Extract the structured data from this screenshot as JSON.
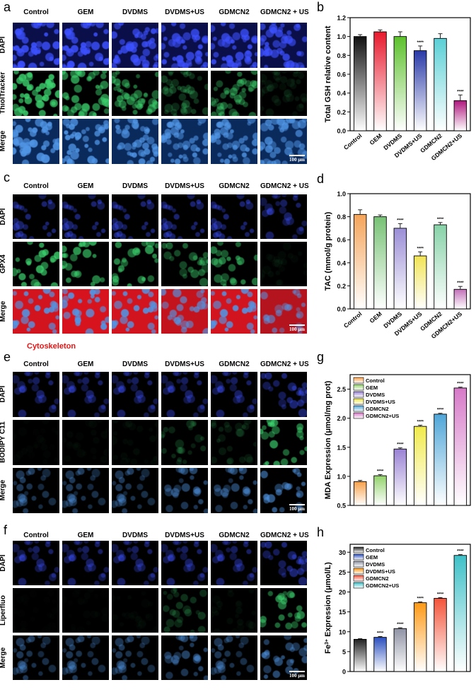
{
  "colors": {
    "dapi": "#2233d8",
    "green": "#33c060",
    "red": "#d62828",
    "error": "#222222"
  },
  "micrographs": [
    {
      "id": "a",
      "columns": [
        "Control",
        "GEM",
        "DVDMS",
        "DVDMS+US",
        "GDMCN2",
        "GDMCN2 + US"
      ],
      "rows": [
        "DAPI",
        "ThiolTracker",
        "Merge"
      ],
      "scale": "100 μm",
      "intensity": {
        "DAPI": [
          0.95,
          0.95,
          0.9,
          0.85,
          0.85,
          0.8
        ],
        "ThiolTracker": [
          0.9,
          0.7,
          0.6,
          0.3,
          0.5,
          0.1
        ],
        "Merge": [
          0.95,
          0.9,
          0.85,
          0.8,
          0.8,
          0.75
        ]
      }
    },
    {
      "id": "c",
      "columns": [
        "Control",
        "GEM",
        "DVDMS",
        "DVDMS+US",
        "GDMCN2",
        "GDMCN2 + US"
      ],
      "rows": [
        "DAPI",
        "GPX4",
        "Merge"
      ],
      "scale": "100 μm",
      "caption": "Cytoskeleton",
      "intensity": {
        "DAPI": [
          0.5,
          0.5,
          0.5,
          0.5,
          0.5,
          0.4
        ],
        "GPX4": [
          0.8,
          0.75,
          0.7,
          0.45,
          0.6,
          0.05
        ],
        "Merge": [
          0.9,
          0.95,
          0.9,
          0.75,
          0.9,
          0.6
        ]
      }
    },
    {
      "id": "e",
      "columns": [
        "Control",
        "GEM",
        "DVDMS",
        "DVDMS+US",
        "GDMCN2",
        "GDMCN2 + US"
      ],
      "rows": [
        "DAPI",
        "BODIPY C11",
        "Merge"
      ],
      "scale": "100 μm",
      "intensity": {
        "DAPI": [
          0.4,
          0.4,
          0.4,
          0.4,
          0.4,
          0.45
        ],
        "BODIPY C11": [
          0.02,
          0.03,
          0.05,
          0.2,
          0.15,
          0.7
        ],
        "Merge": [
          0.4,
          0.4,
          0.4,
          0.45,
          0.45,
          0.6
        ]
      }
    },
    {
      "id": "f",
      "columns": [
        "Control",
        "GEM",
        "DVDMS",
        "DVDMS+US",
        "GDMCN2",
        "GDMCN2 + US"
      ],
      "rows": [
        "DAPI",
        "Liperfluo",
        "Merge"
      ],
      "scale": "100 μm",
      "intensity": {
        "DAPI": [
          0.4,
          0.4,
          0.4,
          0.4,
          0.4,
          0.45
        ],
        "Liperfluo": [
          0.01,
          0.02,
          0.03,
          0.25,
          0.05,
          0.6
        ],
        "Merge": [
          0.4,
          0.4,
          0.4,
          0.45,
          0.4,
          0.55
        ]
      }
    }
  ],
  "chart_data": [
    {
      "id": "b",
      "type": "bar",
      "title": "",
      "ylabel": "Total GSH relative content",
      "xlabel": "",
      "categories": [
        "Control",
        "GEM",
        "DVDMS",
        "DVDMS+US",
        "GDMCN2",
        "GDMCN2+US"
      ],
      "values": [
        1.0,
        1.05,
        1.0,
        0.85,
        0.98,
        0.32
      ],
      "errors": [
        0.02,
        0.02,
        0.05,
        0.05,
        0.05,
        0.06
      ],
      "significance": [
        "",
        "",
        "",
        "****",
        "",
        "****"
      ],
      "ylim": [
        0.0,
        1.2
      ],
      "yticks": [
        "0.0",
        "0.2",
        "0.4",
        "0.6",
        "0.8",
        "1.0",
        "1.2"
      ],
      "colors": [
        "#111111",
        "#e8192c",
        "#5cc12c",
        "#2a3aa8",
        "#5ad0d6",
        "#b0167e"
      ],
      "legend": null
    },
    {
      "id": "d",
      "type": "bar",
      "title": "",
      "ylabel": "TAC (mmol/g protein)",
      "xlabel": "",
      "categories": [
        "Control",
        "GEM",
        "DVDMS",
        "DVDMS+US",
        "GDMCN2",
        "GDMCN2+US"
      ],
      "values": [
        0.82,
        0.8,
        0.7,
        0.46,
        0.73,
        0.17
      ],
      "errors": [
        0.04,
        0.015,
        0.04,
        0.035,
        0.02,
        0.025
      ],
      "significance": [
        "",
        "",
        "****",
        "****",
        "****",
        "****"
      ],
      "ylim": [
        0.0,
        1.0
      ],
      "yticks": [
        "0.0",
        "0.2",
        "0.4",
        "0.6",
        "0.8",
        "1.0"
      ],
      "colors": [
        "#f5a45a",
        "#77c275",
        "#9b8ed6",
        "#f2e455",
        "#87d2a8",
        "#c270b9"
      ],
      "legend": null
    },
    {
      "id": "g",
      "type": "bar",
      "title": "",
      "ylabel": "MDA Expression (μmol/mg prot)",
      "xlabel": "",
      "categories": [
        "Control",
        "GEM",
        "DVDMS",
        "DVDMS+US",
        "GDMCN2",
        "GDMCN2+US"
      ],
      "values": [
        0.91,
        1.01,
        1.47,
        1.86,
        2.07,
        2.52
      ],
      "errors": [
        0.02,
        0.02,
        0.02,
        0.02,
        0.015,
        0.015
      ],
      "significance": [
        "",
        "****",
        "****",
        "****",
        "****",
        "****"
      ],
      "ylim": [
        0.5,
        2.75
      ],
      "yticks": [
        "0.5",
        "1.0",
        "1.5",
        "2.0",
        "2.5"
      ],
      "colors": [
        "#f8a14a",
        "#93d36b",
        "#9a82d4",
        "#f1ea4b",
        "#4fa6d8",
        "#d779c8"
      ],
      "legend": [
        "Control",
        "GEM",
        "DVDMS",
        "DVDMS+US",
        "GDMCN2",
        "GDMCN2+US"
      ],
      "show_xticks": false
    },
    {
      "id": "h",
      "type": "bar",
      "title": "",
      "ylabel": "Fe3+ Expression (μmol/L)",
      "xlabel": "",
      "categories": [
        "Control",
        "GEM",
        "DVDMS",
        "DVDMS+US",
        "GDMCN2",
        "GDMCN2+US"
      ],
      "values": [
        8.1,
        8.6,
        10.8,
        17.3,
        18.4,
        29.2
      ],
      "errors": [
        0.15,
        0.2,
        0.2,
        0.2,
        0.2,
        0.2
      ],
      "significance": [
        "",
        "****",
        "****",
        "****",
        "****",
        "****"
      ],
      "ylim": [
        0,
        32
      ],
      "yticks": [
        "0",
        "5",
        "10",
        "15",
        "20",
        "25",
        "30"
      ],
      "colors": [
        "#222222",
        "#2a4fbf",
        "#8f93a4",
        "#ff9a16",
        "#f4543a",
        "#3fc1c8"
      ],
      "legend": [
        "Control",
        "GEM",
        "DVDMS",
        "DVDMS+US",
        "GDMCN2",
        "GDMCN2+US"
      ],
      "show_xticks": false
    }
  ],
  "labels": {
    "a": "a",
    "b": "b",
    "c": "c",
    "d": "d",
    "e": "e",
    "f": "f",
    "g": "g",
    "h": "h"
  }
}
